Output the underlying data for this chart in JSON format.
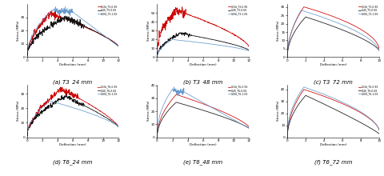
{
  "title": "",
  "subplots": [
    {
      "label": "(a) T3_24 mm",
      "x_max": 12,
      "y_max": 50
    },
    {
      "label": "(b) T3_48 mm",
      "x_max": 12,
      "y_max": 55
    },
    {
      "label": "(c) T3_72 mm",
      "x_max": 10,
      "y_max": 50
    },
    {
      "label": "(d) T6_24 mm",
      "x_max": 12,
      "y_max": 45
    },
    {
      "label": "(e) T6_48 mm",
      "x_max": 12,
      "y_max": 45
    },
    {
      "label": "(f) T6_72 mm",
      "x_max": 10,
      "y_max": 50
    }
  ],
  "legend_labels_top": [
    "0.1St_T3-0.9S",
    "0.4S_T3-0.6S",
    "0.0St_T3-1.0S"
  ],
  "legend_labels_bot": [
    "0.1St_T6-0.9S",
    "0.4S_T6-0.6S",
    "0.0St_T6-1.0S"
  ],
  "colors": [
    "#cc0000",
    "#111111",
    "#6699cc"
  ],
  "xlabel": "Deflection (mm)",
  "ylabel": "Stress (MPa)",
  "background_color": "#ffffff"
}
